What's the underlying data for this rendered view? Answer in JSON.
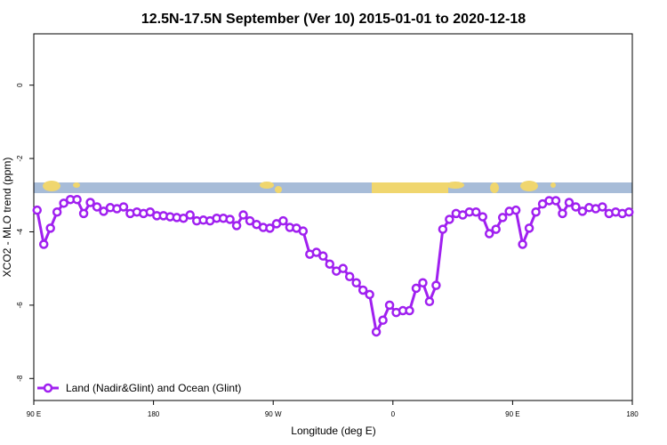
{
  "chart_data": {
    "type": "line",
    "title": "12.5N-17.5N September (Ver 10)   2015-01-01 to 2020-12-18",
    "x_label": "Longitude (deg E)",
    "y_label": "XCO2 - MLO trend (ppm)",
    "x": [
      92.5,
      97.5,
      102.5,
      107.5,
      112.5,
      117.5,
      122.5,
      127.5,
      132.5,
      137.5,
      142.5,
      147.5,
      152.5,
      157.5,
      162.5,
      167.5,
      172.5,
      177.5,
      182.5,
      187.5,
      192.5,
      197.5,
      202.5,
      207.5,
      212.5,
      217.5,
      222.5,
      227.5,
      232.5,
      237.5,
      242.5,
      247.5,
      252.5,
      257.5,
      262.5,
      267.5,
      272.5,
      277.5,
      282.5,
      287.5,
      292.5,
      297.5,
      302.5,
      307.5,
      312.5,
      317.5,
      322.5,
      327.5,
      332.5,
      337.5,
      342.5,
      347.5,
      352.5,
      357.5,
      362.5,
      367.5,
      372.5,
      377.5,
      382.5,
      387.5,
      392.5,
      397.5,
      402.5,
      407.5,
      412.5,
      417.5,
      422.5,
      427.5,
      432.5,
      437.5,
      442.5,
      447.5,
      452.5,
      457.5,
      462.5,
      467.5,
      472.5,
      477.5,
      482.5,
      487.5,
      492.5,
      497.5,
      502.5,
      507.5,
      512.5,
      517.5,
      522.5,
      527.5,
      532.5,
      537.5
    ],
    "series": [
      {
        "name": "Land (Nadir&Glint) and Ocean (Glint)",
        "color": "#a020f0",
        "values": [
          -3.41,
          -4.34,
          -3.9,
          -3.46,
          -3.22,
          -3.12,
          -3.12,
          -3.5,
          -3.2,
          -3.32,
          -3.44,
          -3.34,
          -3.37,
          -3.32,
          -3.5,
          -3.46,
          -3.5,
          -3.46,
          -3.56,
          -3.56,
          -3.59,
          -3.61,
          -3.63,
          -3.54,
          -3.7,
          -3.68,
          -3.7,
          -3.63,
          -3.63,
          -3.66,
          -3.83,
          -3.54,
          -3.7,
          -3.8,
          -3.88,
          -3.9,
          -3.78,
          -3.7,
          -3.88,
          -3.9,
          -3.98,
          -4.61,
          -4.56,
          -4.66,
          -4.88,
          -5.07,
          -5.0,
          -5.22,
          -5.39,
          -5.59,
          -5.71,
          -6.73,
          -6.41,
          -6.0,
          -6.2,
          -6.15,
          -6.15,
          -5.54,
          -5.39,
          -5.9,
          -5.46,
          -3.93,
          -3.66,
          -3.5,
          -3.54,
          -3.46,
          -3.46,
          -3.59,
          -4.05,
          -3.93,
          -3.61,
          -3.44,
          -3.41,
          -4.34,
          -3.9,
          -3.46,
          -3.24,
          -3.15,
          -3.15,
          -3.5,
          -3.2,
          -3.32,
          -3.44,
          -3.34,
          -3.37,
          -3.32,
          -3.5,
          -3.46,
          -3.5,
          -3.46
        ]
      }
    ],
    "xlim": [
      90,
      540
    ],
    "xticks": [
      {
        "value": 90,
        "label": "90 E"
      },
      180,
      {
        "value": 270,
        "label": "90 W"
      },
      {
        "value": 360,
        "label": "0"
      },
      {
        "value": 450,
        "label": "90 E"
      },
      {
        "value": 540,
        "label": "180"
      }
    ],
    "ylim": [
      -8.6,
      1.4
    ],
    "yticks": [
      0,
      -2,
      -4,
      -6,
      -8
    ],
    "legend": "bottom-left"
  }
}
